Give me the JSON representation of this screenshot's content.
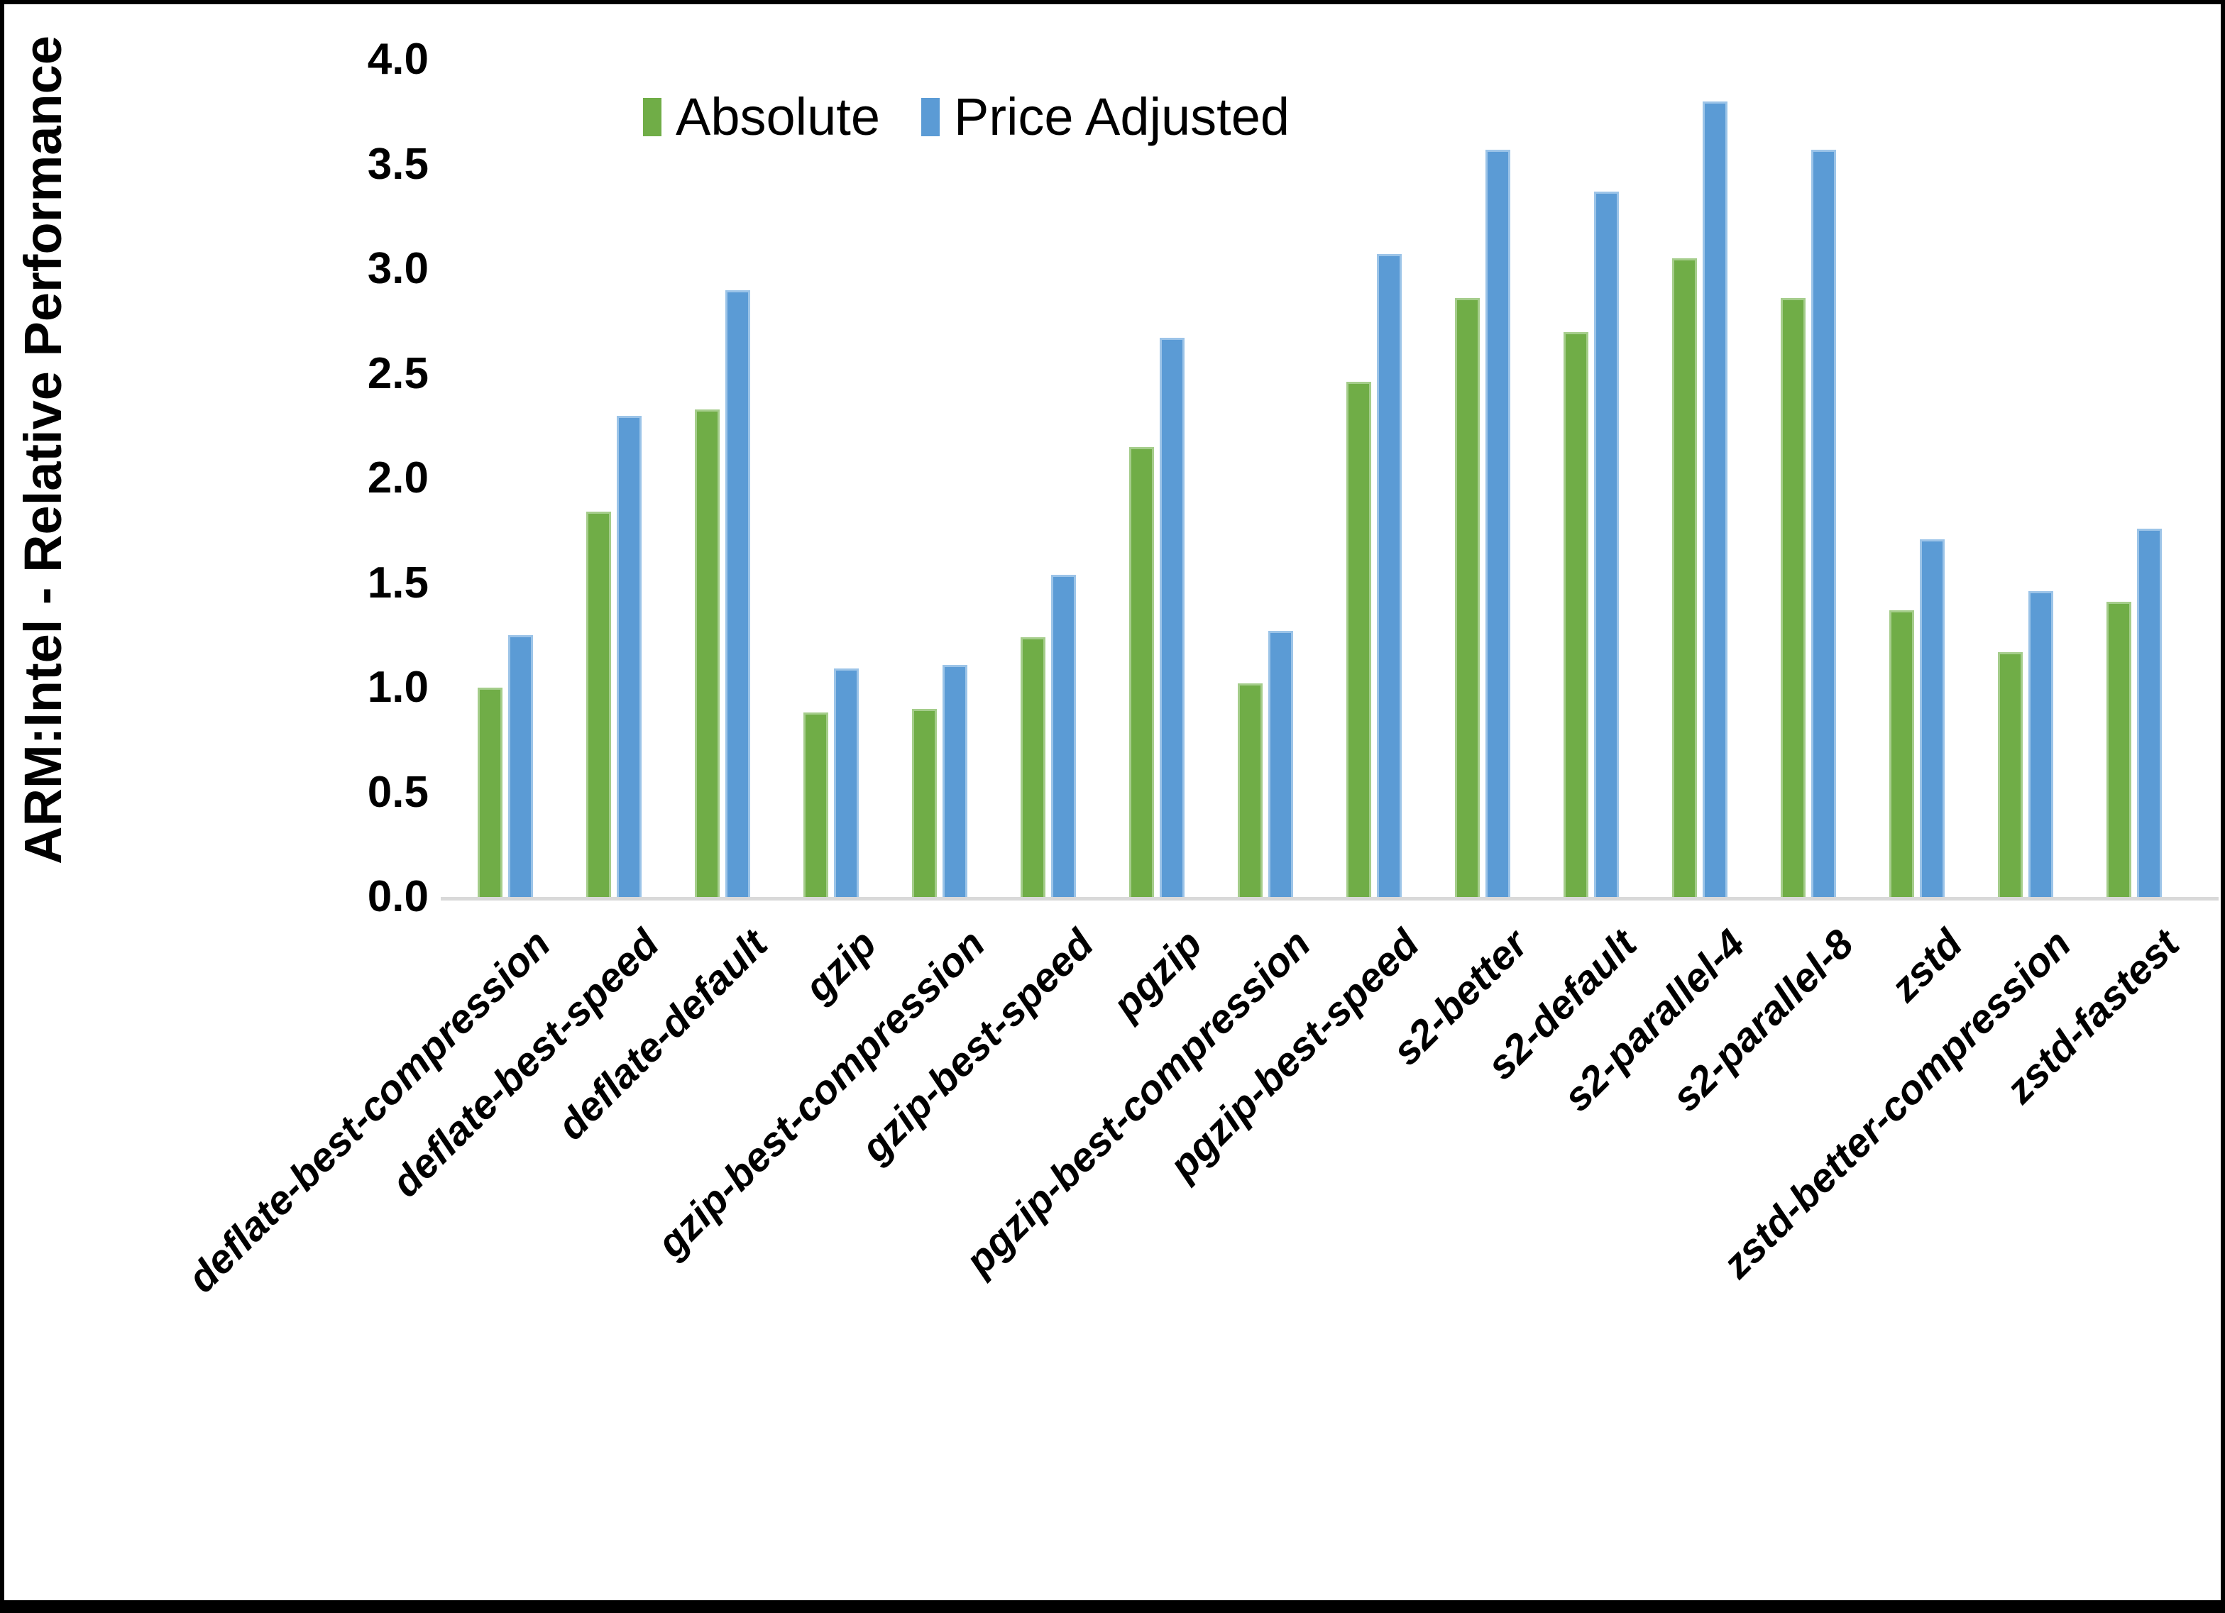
{
  "chart_data": {
    "type": "bar",
    "title": "",
    "ylabel": "ARM:Intel - Relative Performance",
    "xlabel": "",
    "ylim": [
      0.0,
      4.0
    ],
    "ytick_step": 0.5,
    "yticks": [
      "0.0",
      "0.5",
      "1.0",
      "1.5",
      "2.0",
      "2.5",
      "3.0",
      "3.5",
      "4.0"
    ],
    "grid": false,
    "legend_position": "top-center",
    "categories": [
      "deflate-best-compression",
      "deflate-best-speed",
      "deflate-default",
      "gzip",
      "gzip-best-compression",
      "gzip-best-speed",
      "pgzip",
      "pgzip-best-compression",
      "pgzip-best-speed",
      "s2-better",
      "s2-default",
      "s2-parallel-4",
      "s2-parallel-8",
      "zstd",
      "zstd-better-compression",
      "zstd-fastest"
    ],
    "series": [
      {
        "name": "Absolute",
        "color": "#70AD47",
        "values": [
          1.0,
          1.84,
          2.33,
          0.88,
          0.9,
          1.24,
          2.15,
          1.02,
          2.46,
          2.86,
          2.7,
          3.05,
          2.86,
          1.37,
          1.17,
          1.41
        ]
      },
      {
        "name": "Price Adjusted",
        "color": "#5B9BD5",
        "values": [
          1.25,
          2.3,
          2.9,
          1.09,
          1.11,
          1.54,
          2.67,
          1.27,
          3.07,
          3.57,
          3.37,
          3.8,
          3.57,
          1.71,
          1.46,
          1.76
        ]
      }
    ],
    "axis_line_color": "#d9d9d9",
    "background_color": "#ffffff"
  }
}
